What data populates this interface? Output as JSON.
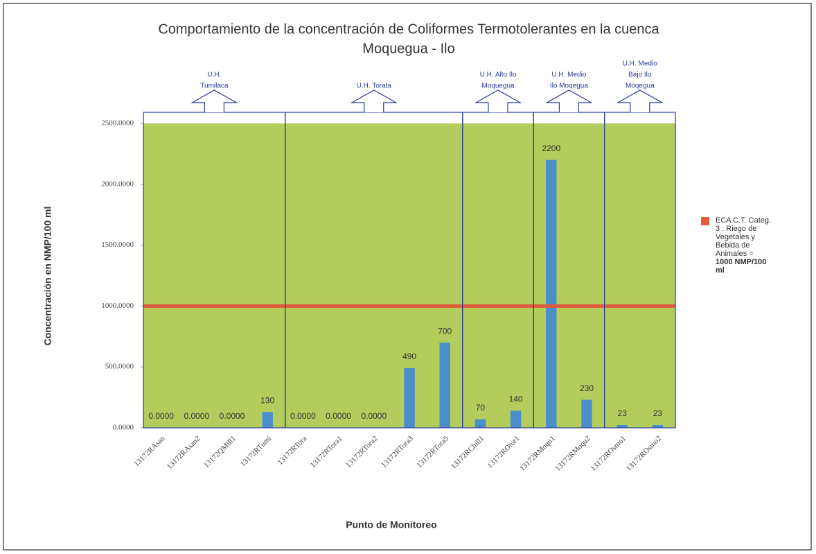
{
  "chart_data": {
    "type": "bar",
    "title": [
      "Comportamiento de la concentración de Coliformes Termotolerantes en la cuenca",
      "Moquegua - Ilo"
    ],
    "xlabel": "Punto de Monitoreo",
    "ylabel": "Concentración en NMP/100 ml",
    "categories": [
      "13172RAsan",
      "13172RAsan2",
      "13172QMill1",
      "13172RTumi",
      "13172RTora",
      "13172RTora1",
      "13172RTora2",
      "13172RTora3",
      "13172RTora5",
      "13172RChill1",
      "13172ROtor1",
      "13172RMoqu1",
      "13172RMoqu2",
      "13172ROsmo1",
      "13172ROsmo2"
    ],
    "values": [
      0,
      0,
      0,
      130,
      0,
      0,
      0,
      490,
      700,
      70,
      140,
      2200,
      230,
      23,
      23
    ],
    "value_labels": [
      "0.0000",
      "0.0000",
      "0.0000",
      "130",
      "0.0000",
      "0.0000",
      "0.0000",
      "490",
      "700",
      "70",
      "140",
      "2200",
      "230",
      "23",
      "23"
    ],
    "color": "#4a8fcb",
    "ylim": [
      0,
      2500
    ],
    "yticks": [
      {
        "value": 0,
        "label": "0.0000"
      },
      {
        "value": 500,
        "label": "500.0000"
      },
      {
        "value": 1000,
        "label": "1000.0000"
      },
      {
        "value": 1500,
        "label": "1500.0000"
      },
      {
        "value": 2000,
        "label": "2000.0000"
      },
      {
        "value": 2500,
        "label": "2500.0000"
      }
    ],
    "threshold": {
      "value": 1000,
      "color": "#e05a3c"
    },
    "groups": [
      {
        "label": [
          "U.H.",
          "Tumilaca"
        ],
        "categories": [
          0,
          3
        ]
      },
      {
        "label": [
          "U.H. Torata"
        ],
        "categories": [
          4,
          8
        ]
      },
      {
        "label": [
          "U.H. Alto Ilo",
          "Moquegua"
        ],
        "categories": [
          9,
          10
        ]
      },
      {
        "label": [
          "U.H. Medio",
          "Ilo Moqegua"
        ],
        "categories": [
          11,
          12
        ]
      },
      {
        "label": [
          "U.H. Medio",
          "Bajo Ilo",
          "Moqegua"
        ],
        "categories": [
          13,
          14
        ]
      }
    ],
    "legend": {
      "lines": [
        "ECA C.T. Categ.",
        "3 : Riego de",
        "Vegetales y",
        "Bebida de",
        "Animales ="
      ],
      "bold": [
        "1000 NMP/100",
        "ml"
      ]
    }
  }
}
